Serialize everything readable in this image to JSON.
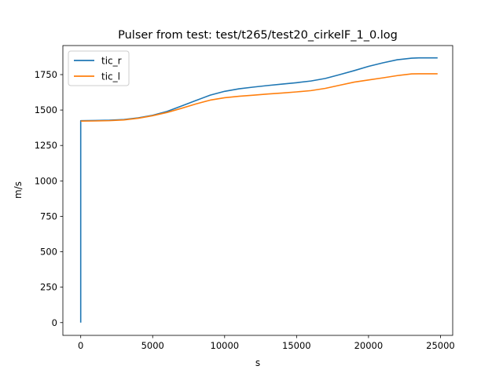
{
  "chart_data": {
    "type": "line",
    "title": "Pulser from test: test/t265/test20_cirkelF_1_0.log",
    "xlabel": "s",
    "ylabel": "m/s",
    "xlim": [
      -1240,
      25850
    ],
    "ylim": [
      -90,
      1955
    ],
    "xticks": [
      0,
      5000,
      10000,
      15000,
      20000,
      25000
    ],
    "yticks": [
      0,
      250,
      500,
      750,
      1000,
      1250,
      1500,
      1750
    ],
    "grid": false,
    "legend": "top-left",
    "series": [
      {
        "name": "tic_r",
        "color": "#1f77b4",
        "x": [
          0,
          0,
          0,
          1000,
          2000,
          3000,
          4000,
          5000,
          6000,
          7000,
          8000,
          9000,
          10000,
          11000,
          12000,
          13000,
          14000,
          15000,
          16000,
          17000,
          18000,
          19000,
          20000,
          21000,
          22000,
          23000,
          23500,
          24000,
          24800
        ],
        "y": [
          0,
          1422,
          1425,
          1426,
          1428,
          1433,
          1445,
          1463,
          1490,
          1528,
          1567,
          1605,
          1632,
          1650,
          1662,
          1673,
          1683,
          1693,
          1705,
          1723,
          1750,
          1778,
          1808,
          1833,
          1855,
          1866,
          1868,
          1868,
          1868
        ]
      },
      {
        "name": "tic_l",
        "color": "#ff7f0e",
        "x": [
          0,
          1000,
          2000,
          3000,
          4000,
          5000,
          6000,
          7000,
          8000,
          9000,
          10000,
          11000,
          12000,
          13000,
          14000,
          15000,
          16000,
          17000,
          18000,
          19000,
          20000,
          21000,
          22000,
          23000,
          23500,
          24000,
          24800
        ],
        "y": [
          1422,
          1423,
          1425,
          1430,
          1442,
          1460,
          1483,
          1512,
          1543,
          1570,
          1587,
          1597,
          1605,
          1613,
          1620,
          1628,
          1637,
          1653,
          1675,
          1697,
          1712,
          1727,
          1743,
          1755,
          1756,
          1756,
          1756
        ]
      }
    ]
  }
}
